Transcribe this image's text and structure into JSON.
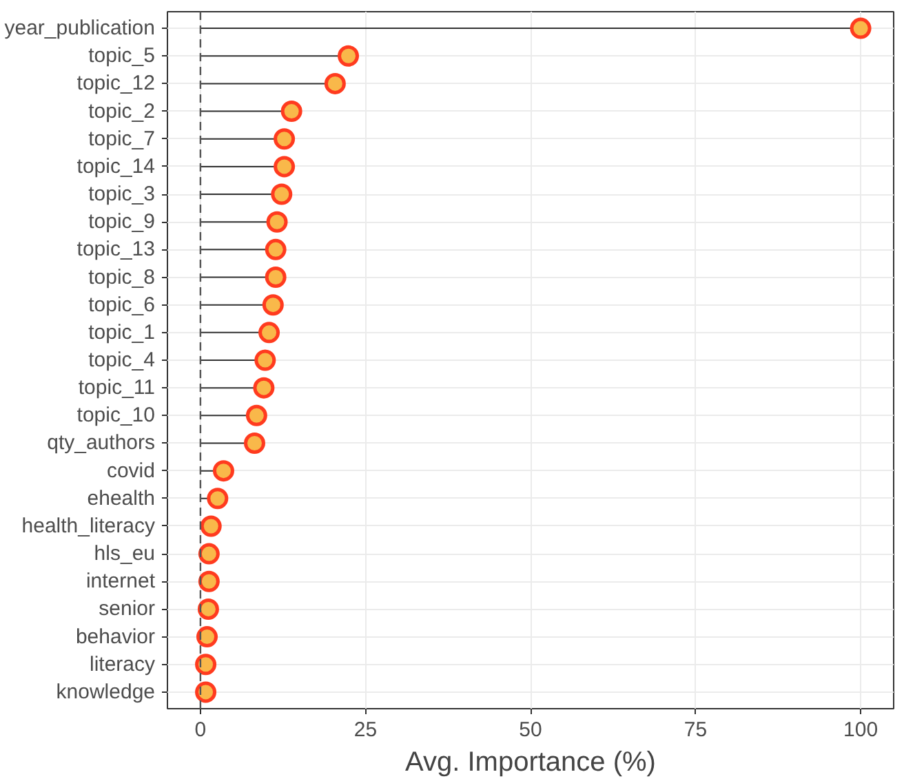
{
  "chart_data": {
    "type": "lollipop",
    "orientation": "horizontal",
    "xlabel": "Avg. Importance (%)",
    "categories": [
      "year_publication",
      "topic_5",
      "topic_12",
      "topic_2",
      "topic_7",
      "topic_14",
      "topic_3",
      "topic_9",
      "topic_13",
      "topic_8",
      "topic_6",
      "topic_1",
      "topic_4",
      "topic_11",
      "topic_10",
      "qty_authors",
      "covid",
      "ehealth",
      "health_literacy",
      "hls_eu",
      "internet",
      "senior",
      "behavior",
      "literacy",
      "knowledge"
    ],
    "values": [
      100,
      22.4,
      20.4,
      13.8,
      12.7,
      12.7,
      12.3,
      11.6,
      11.4,
      11.4,
      11.0,
      10.4,
      9.8,
      9.6,
      8.5,
      8.2,
      3.5,
      2.6,
      1.6,
      1.3,
      1.3,
      1.2,
      1.0,
      0.8,
      0.8
    ],
    "color": "#f9b84a",
    "marker": "circle",
    "grid": true,
    "xlim": [
      -5,
      105
    ],
    "xticks": [
      0,
      25,
      50,
      75,
      100
    ],
    "ref_lines": [
      {
        "axis": "x",
        "value": 0,
        "line_style": "dashed",
        "color": "#555555"
      }
    ]
  }
}
